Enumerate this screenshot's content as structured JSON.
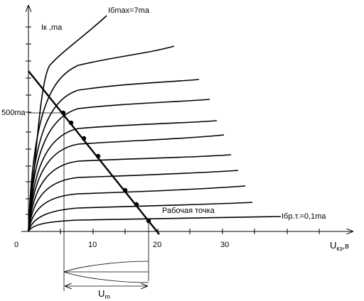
{
  "y_axis_label": "Iк ,ma",
  "max_curve_label": "Iбmax=7ma",
  "y_tick_label": "500ma",
  "operating_point_label": "Рабочая точка",
  "min_curve_label": "Iбр.т.=0,1ma",
  "x_tick_labels": [
    "0",
    "10",
    "20",
    "30"
  ],
  "x_axis_label": {
    "symbol": "U",
    "subscript": "кэ",
    "unit": ",в"
  },
  "amplitude_label": {
    "symbol": "U",
    "subscript": "m"
  }
}
